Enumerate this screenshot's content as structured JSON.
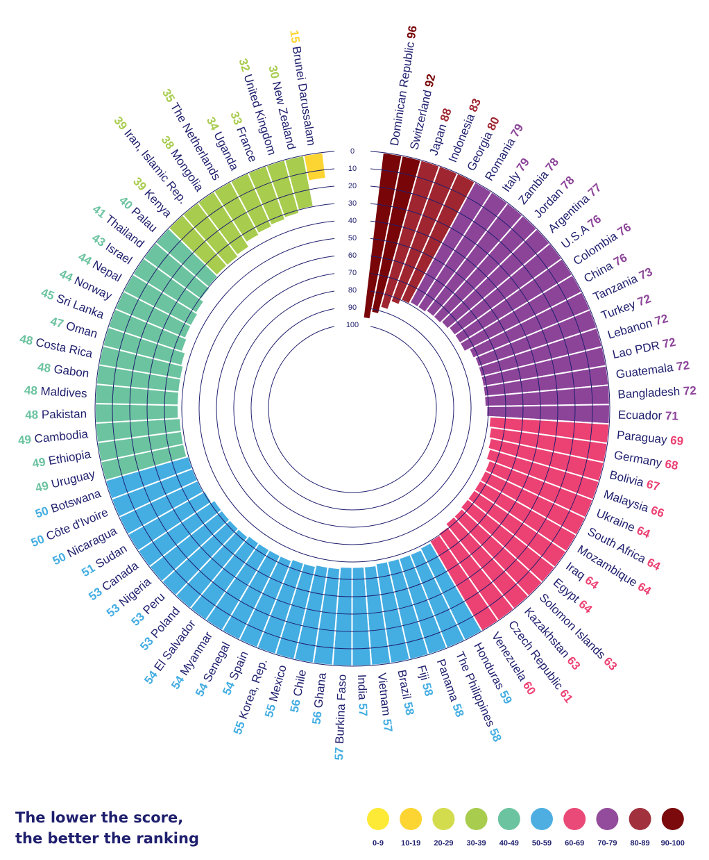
{
  "chart_data": {
    "type": "radial-bar",
    "title": "",
    "axis": {
      "ticks": [
        "0",
        "10",
        "20",
        "30",
        "40",
        "50",
        "60",
        "70",
        "80",
        "90",
        "100"
      ],
      "range": [
        0,
        100
      ],
      "direction": "outer-to-inner"
    },
    "countries": [
      {
        "name": "Dominican Republic",
        "score": 96
      },
      {
        "name": "Switzerland",
        "score": 92
      },
      {
        "name": "Japan",
        "score": 88
      },
      {
        "name": "Indonesia",
        "score": 83
      },
      {
        "name": "Georgia",
        "score": 80
      },
      {
        "name": "Romania",
        "score": 79
      },
      {
        "name": "Italy",
        "score": 79
      },
      {
        "name": "Zambia",
        "score": 78
      },
      {
        "name": "Jordan",
        "score": 78
      },
      {
        "name": "Argentina",
        "score": 77
      },
      {
        "name": "U.S.A",
        "score": 76
      },
      {
        "name": "Colombia",
        "score": 76
      },
      {
        "name": "China",
        "score": 76
      },
      {
        "name": "Tanzania",
        "score": 73
      },
      {
        "name": "Turkey",
        "score": 72
      },
      {
        "name": "Lebanon",
        "score": 72
      },
      {
        "name": "Lao PDR",
        "score": 72
      },
      {
        "name": "Guatemala",
        "score": 72
      },
      {
        "name": "Bangladesh",
        "score": 72
      },
      {
        "name": "Ecuador",
        "score": 71
      },
      {
        "name": "Paraguay",
        "score": 69
      },
      {
        "name": "Germany",
        "score": 68
      },
      {
        "name": "Bolivia",
        "score": 67
      },
      {
        "name": "Malaysia",
        "score": 66
      },
      {
        "name": "Ukraine",
        "score": 64
      },
      {
        "name": "South Africa",
        "score": 64
      },
      {
        "name": "Mozambique",
        "score": 64
      },
      {
        "name": "Iraq",
        "score": 64
      },
      {
        "name": "Egypt",
        "score": 64
      },
      {
        "name": "Solomon Islands",
        "score": 63
      },
      {
        "name": "Kazakhstan",
        "score": 63
      },
      {
        "name": "Czech Republic",
        "score": 61
      },
      {
        "name": "Venezuela",
        "score": 60
      },
      {
        "name": "Honduras",
        "score": 59
      },
      {
        "name": "The Philippines",
        "score": 58
      },
      {
        "name": "Panama",
        "score": 58
      },
      {
        "name": "Fiji",
        "score": 58
      },
      {
        "name": "Brazil",
        "score": 58
      },
      {
        "name": "Vietnam",
        "score": 57
      },
      {
        "name": "India",
        "score": 57
      },
      {
        "name": "Burkina Faso",
        "score": 57
      },
      {
        "name": "Ghana",
        "score": 56
      },
      {
        "name": "Chile",
        "score": 56
      },
      {
        "name": "Mexico",
        "score": 55
      },
      {
        "name": "Korea, Rep.",
        "score": 55
      },
      {
        "name": "Spain",
        "score": 54
      },
      {
        "name": "Senegal",
        "score": 54
      },
      {
        "name": "Myanmar",
        "score": 54
      },
      {
        "name": "El Salvador",
        "score": 54
      },
      {
        "name": "Poland",
        "score": 53
      },
      {
        "name": "Peru",
        "score": 53
      },
      {
        "name": "Nigeria",
        "score": 53
      },
      {
        "name": "Canada",
        "score": 53
      },
      {
        "name": "Sudan",
        "score": 51
      },
      {
        "name": "Nicaragua",
        "score": 50
      },
      {
        "name": "Côte d'Ivoire",
        "score": 50
      },
      {
        "name": "Botswana",
        "score": 50
      },
      {
        "name": "Uruguay",
        "score": 49
      },
      {
        "name": "Ethiopia",
        "score": 49
      },
      {
        "name": "Cambodia",
        "score": 49
      },
      {
        "name": "Pakistan",
        "score": 48
      },
      {
        "name": "Maldives",
        "score": 48
      },
      {
        "name": "Gabon",
        "score": 48
      },
      {
        "name": "Costa Rica",
        "score": 48
      },
      {
        "name": "Oman",
        "score": 47
      },
      {
        "name": "Sri Lanka",
        "score": 45
      },
      {
        "name": "Norway",
        "score": 44
      },
      {
        "name": "Nepal",
        "score": 44
      },
      {
        "name": "Israel",
        "score": 43
      },
      {
        "name": "Thailand",
        "score": 41
      },
      {
        "name": "Palau",
        "score": 40
      },
      {
        "name": "Kenya",
        "score": 39
      },
      {
        "name": "Iran, Islamic Rep.",
        "score": 39
      },
      {
        "name": "Mongolia",
        "score": 38
      },
      {
        "name": "The Netherlands",
        "score": 35
      },
      {
        "name": "Uganda",
        "score": 34
      },
      {
        "name": "France",
        "score": 33
      },
      {
        "name": "United Kingdom",
        "score": 32
      },
      {
        "name": "New Zealand",
        "score": 30
      },
      {
        "name": "Brunei Darussalam",
        "score": 15
      }
    ],
    "legend": [
      {
        "label": "0-9",
        "color": "#fcea36"
      },
      {
        "label": "10-19",
        "color": "#fcd533"
      },
      {
        "label": "20-29",
        "color": "#d3dc4c"
      },
      {
        "label": "30-39",
        "color": "#a8cc4e"
      },
      {
        "label": "40-49",
        "color": "#6cc3a0"
      },
      {
        "label": "50-59",
        "color": "#4eaee1"
      },
      {
        "label": "60-69",
        "color": "#ea4a77"
      },
      {
        "label": "70-79",
        "color": "#924c9b"
      },
      {
        "label": "80-89",
        "color": "#a1323d"
      },
      {
        "label": "90-100",
        "color": "#7a0a0c"
      }
    ],
    "bar_colors": [
      "#fcea36",
      "#fcd533",
      "#d3dc4c",
      "#a8cc4e",
      "#6cc3a0",
      "#44ade2",
      "#ec4173",
      "#8c4499",
      "#9f2630",
      "#780508"
    ],
    "legend_placement": "bottom-right"
  },
  "note": {
    "line1": "The lower the score,",
    "line2": "the better the ranking"
  }
}
